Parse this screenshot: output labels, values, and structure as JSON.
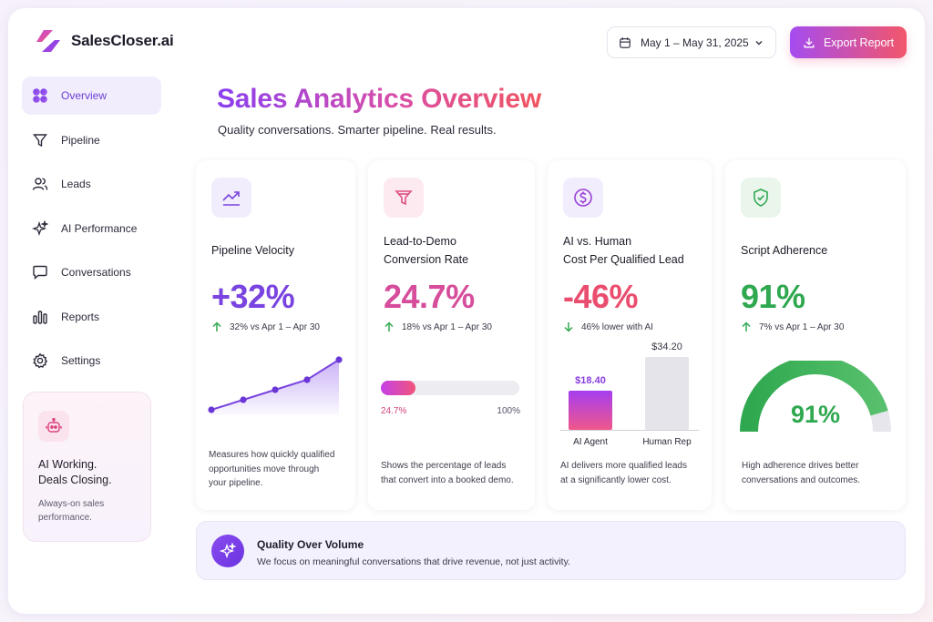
{
  "app": {
    "name": "SalesCloser.ai"
  },
  "header": {
    "date_range": "May 1 – May 31, 2025",
    "export_label": "Export Report"
  },
  "sidebar": {
    "items": [
      {
        "label": "Overview",
        "icon": "grid-icon",
        "active": true
      },
      {
        "label": "Pipeline",
        "icon": "filter-icon",
        "active": false
      },
      {
        "label": "Leads",
        "icon": "users-icon",
        "active": false
      },
      {
        "label": "AI Performance",
        "icon": "sparkle-icon",
        "active": false
      },
      {
        "label": "Conversations",
        "icon": "chat-icon",
        "active": false
      },
      {
        "label": "Reports",
        "icon": "bar-chart-icon",
        "active": false
      },
      {
        "label": "Settings",
        "icon": "gear-icon",
        "active": false
      }
    ],
    "promo": {
      "title_line1": "AI Working.",
      "title_line2": "Deals Closing.",
      "subtitle_line1": "Always-on sales",
      "subtitle_line2": "performance.",
      "icon": "robot-icon"
    }
  },
  "main": {
    "title": "Sales Analytics Overview",
    "subtitle": "Quality conversations. Smarter pipeline. Real results."
  },
  "cards": {
    "pipeline": {
      "title": "Pipeline Velocity",
      "value": "+32%",
      "delta": "32% vs Apr 1 – Apr 30",
      "desc_lines": [
        "Measures how quickly qualified",
        "opportunities move through",
        "your pipeline."
      ],
      "icon": "trend-up-icon",
      "color": "#7a44e0"
    },
    "conversion": {
      "title_line1": "Lead-to-Demo",
      "title_line2": "Conversion Rate",
      "value": "24.7%",
      "delta": "18% vs Apr 1 – Apr 30",
      "progress_label": "24.7%",
      "progress_max_label": "100%",
      "progress_fraction": 0.247,
      "desc_lines": [
        "Shows the percentage of leads",
        "that convert into a booked demo."
      ],
      "icon": "funnel-icon",
      "color": "#d64d9c"
    },
    "cost": {
      "title_line1": "AI vs. Human",
      "title_line2": "Cost Per Qualified Lead",
      "value": "-46%",
      "delta": "46% lower with AI",
      "desc_lines": [
        "AI delivers more qualified leads",
        "at a significantly lower cost."
      ],
      "icon": "dollar-icon",
      "color": "#ea4e6e"
    },
    "adherence": {
      "title": "Script Adherence",
      "value": "91%",
      "delta": "7% vs Apr 1 – Apr 30",
      "gauge_label": "91%",
      "gauge_fraction": 0.91,
      "desc_lines": [
        "High adherence drives better",
        "conversations and outcomes."
      ],
      "icon": "shield-check-icon",
      "color": "#2fa84f"
    }
  },
  "chart_data": [
    {
      "type": "line",
      "x": [
        1,
        2,
        3,
        4,
        5
      ],
      "values": [
        1,
        2,
        3,
        4,
        6
      ]
    },
    {
      "type": "bar",
      "categories": [
        "AI Agent",
        "Human Rep"
      ],
      "values": [
        18.4,
        34.2
      ],
      "data_labels": [
        "$18.40",
        "$34.20"
      ]
    }
  ],
  "banner": {
    "title": "Quality Over Volume",
    "subtitle": "We focus on meaningful conversations that drive revenue, not just activity.",
    "icon": "sparkle-icon"
  }
}
